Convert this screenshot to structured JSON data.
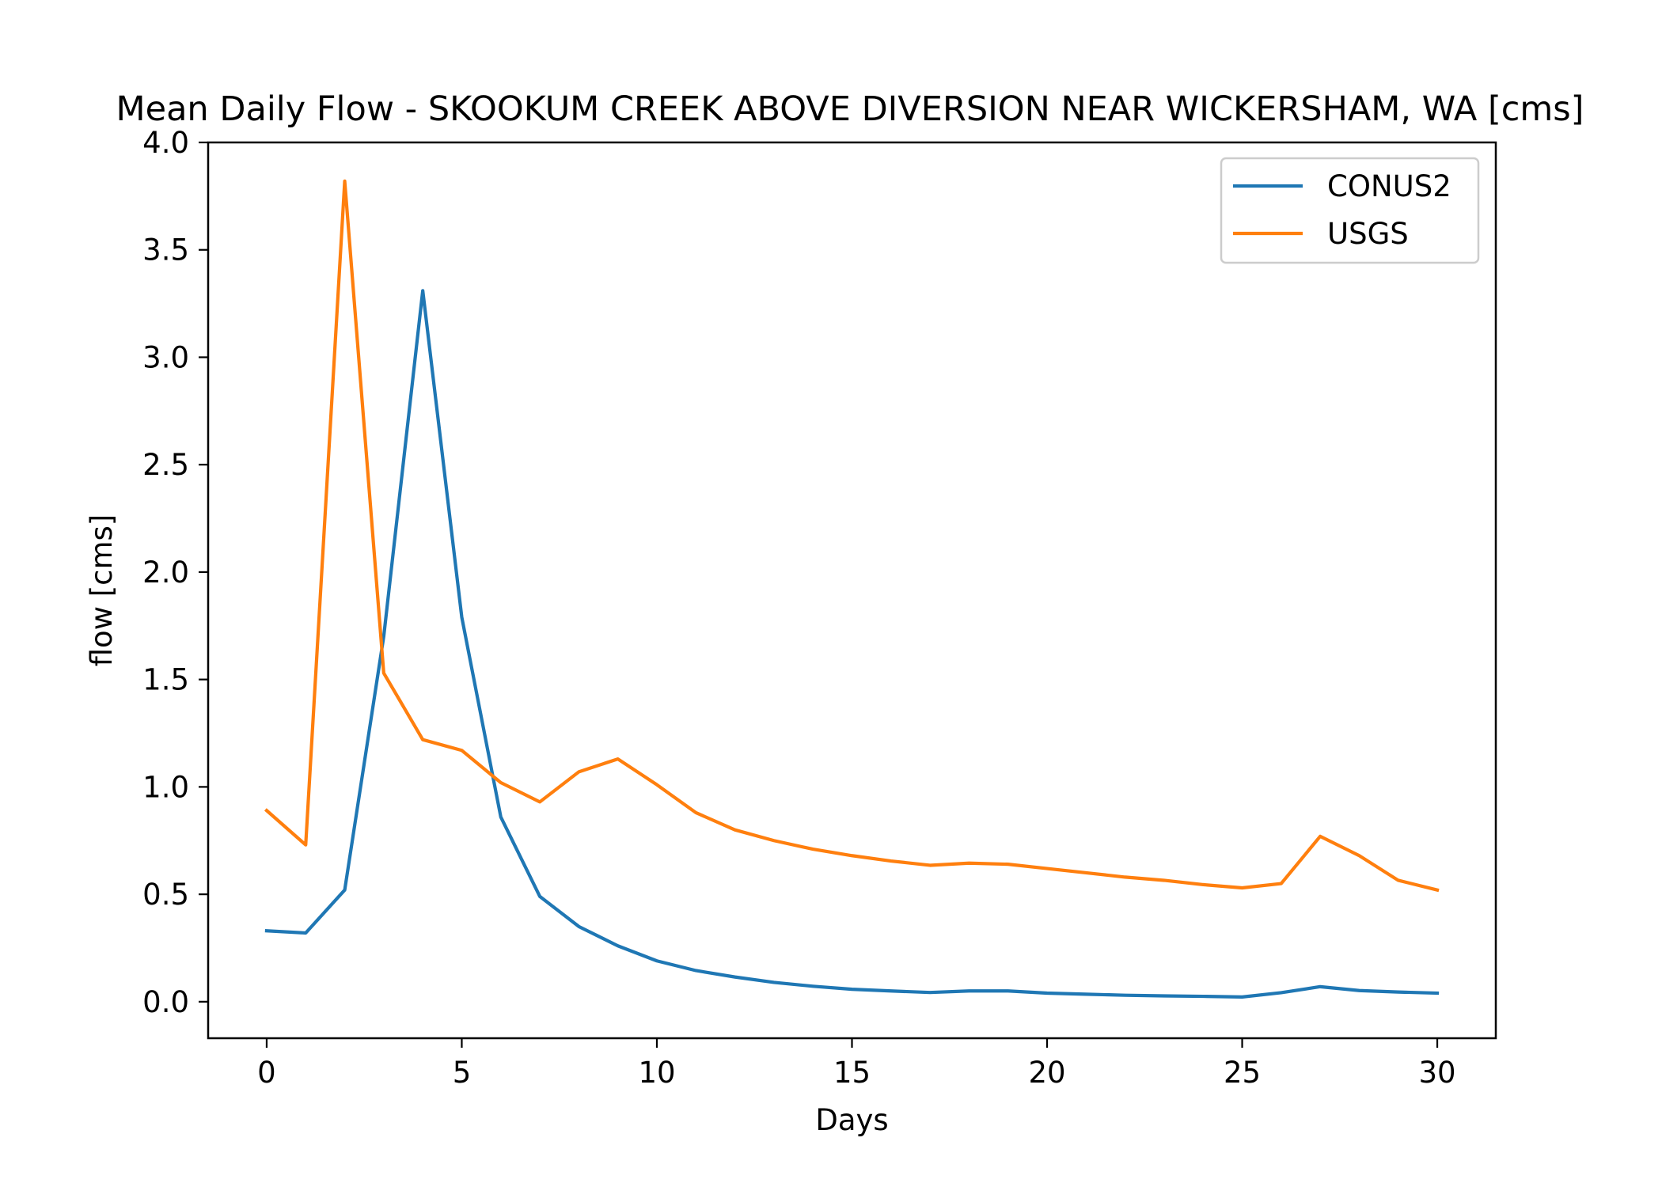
{
  "chart_data": {
    "type": "line",
    "title": "Mean Daily Flow - SKOOKUM CREEK ABOVE DIVERSION NEAR WICKERSHAM, WA [cms]",
    "xlabel": "Days",
    "ylabel": "flow [cms]",
    "xlim": [
      -1.5,
      31.5
    ],
    "ylim": [
      -0.17,
      4.0
    ],
    "xticks": [
      0,
      5,
      10,
      15,
      20,
      25,
      30
    ],
    "yticks": [
      0.0,
      0.5,
      1.0,
      1.5,
      2.0,
      2.5,
      3.0,
      3.5,
      4.0
    ],
    "xtick_labels": [
      "0",
      "5",
      "10",
      "15",
      "20",
      "25",
      "30"
    ],
    "ytick_labels": [
      "0.0",
      "0.5",
      "1.0",
      "1.5",
      "2.0",
      "2.5",
      "3.0",
      "3.5",
      "4.0"
    ],
    "grid": false,
    "legend_position": "top-right",
    "x": [
      0,
      1,
      2,
      3,
      4,
      5,
      6,
      7,
      8,
      9,
      10,
      11,
      12,
      13,
      14,
      15,
      16,
      17,
      18,
      19,
      20,
      21,
      22,
      23,
      24,
      25,
      26,
      27,
      28,
      29,
      30
    ],
    "series": [
      {
        "name": "CONUS2",
        "color": "#1f77b4",
        "values": [
          0.33,
          0.32,
          0.52,
          1.7,
          3.31,
          1.79,
          0.86,
          0.49,
          0.35,
          0.26,
          0.19,
          0.145,
          0.115,
          0.09,
          0.072,
          0.058,
          0.05,
          0.043,
          0.05,
          0.05,
          0.04,
          0.035,
          0.03,
          0.027,
          0.025,
          0.022,
          0.042,
          0.07,
          0.052,
          0.045,
          0.04
        ]
      },
      {
        "name": "USGS",
        "color": "#ff7f0e",
        "values": [
          0.89,
          0.73,
          3.82,
          1.53,
          1.22,
          1.17,
          1.02,
          0.93,
          1.07,
          1.13,
          1.01,
          0.88,
          0.8,
          0.75,
          0.71,
          0.68,
          0.655,
          0.635,
          0.645,
          0.64,
          0.62,
          0.6,
          0.58,
          0.565,
          0.545,
          0.53,
          0.55,
          0.77,
          0.68,
          0.565,
          0.52
        ]
      }
    ]
  }
}
